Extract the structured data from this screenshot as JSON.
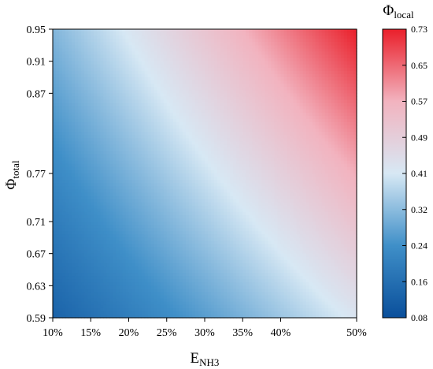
{
  "chart_data": {
    "type": "heatmap",
    "title": "",
    "xlabel": "E",
    "xlabel_sub": "NH3",
    "ylabel": "Φ",
    "ylabel_sub": "total",
    "x_ticks": [
      "10%",
      "15%",
      "20%",
      "25%",
      "30%",
      "35%",
      "40%",
      "50%"
    ],
    "x_values": [
      10,
      15,
      20,
      25,
      30,
      35,
      40,
      50
    ],
    "xlim": [
      10,
      50
    ],
    "y_ticks": [
      "0.59",
      "0.63",
      "0.67",
      "0.71",
      "0.77",
      "0.87",
      "0.91",
      "0.95"
    ],
    "y_values": [
      0.59,
      0.63,
      0.67,
      0.71,
      0.77,
      0.87,
      0.91,
      0.95
    ],
    "ylim": [
      0.59,
      0.95
    ],
    "colorbar": {
      "label": "Φ",
      "label_sub": "local",
      "ticks": [
        "0.08",
        "0.16",
        "0.24",
        "0.32",
        "0.41",
        "0.49",
        "0.57",
        "0.65",
        "0.73"
      ],
      "range": [
        0.08,
        0.73
      ],
      "colormap": [
        "#0a4f9b",
        "#3f8fc8",
        "#d7e8f4",
        "#f2b3bf",
        "#ea1f2a"
      ]
    }
  }
}
